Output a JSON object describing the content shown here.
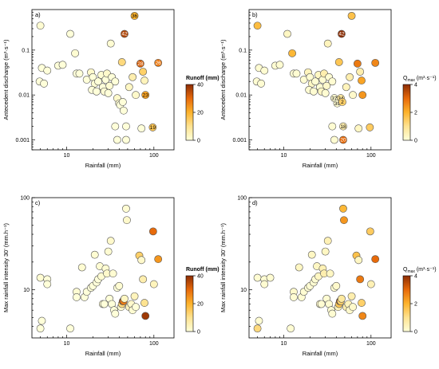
{
  "chart_data": [
    {
      "type": "scatter",
      "panel_label": "a)",
      "xlabel": "Rainfall (mm)",
      "ylabel": "Antecedent discharge (m³·s⁻¹)",
      "xscale": "log",
      "yscale": "log",
      "xlim": [
        4,
        170
      ],
      "ylim": [
        0.0006,
        0.8
      ],
      "xticks": [
        10,
        100
      ],
      "xtick_labels": [
        "10",
        "100"
      ],
      "yticks": [
        0.001,
        0.01,
        0.1
      ],
      "ytick_labels": [
        "0.001",
        "0.01",
        "0.1"
      ],
      "colorbar": {
        "title": "Runoff (mm)",
        "min": 0,
        "max": 40,
        "ticks": [
          0,
          20,
          40
        ],
        "tick_labels": [
          "0",
          "20",
          "40"
        ]
      },
      "points": [
        {
          "x": 5,
          "y": 0.35,
          "c": 1
        },
        {
          "x": 11,
          "y": 0.23,
          "c": 0
        },
        {
          "x": 12.5,
          "y": 0.085,
          "c": 1
        },
        {
          "x": 8,
          "y": 0.045,
          "c": 0
        },
        {
          "x": 9,
          "y": 0.047,
          "c": 0
        },
        {
          "x": 5.2,
          "y": 0.04,
          "c": 0
        },
        {
          "x": 6,
          "y": 0.035,
          "c": 0
        },
        {
          "x": 4.9,
          "y": 0.02,
          "c": 0
        },
        {
          "x": 5.5,
          "y": 0.018,
          "c": 0
        },
        {
          "x": 13,
          "y": 0.03,
          "c": 0
        },
        {
          "x": 14,
          "y": 0.03,
          "c": 0
        },
        {
          "x": 17,
          "y": 0.022,
          "c": 0
        },
        {
          "x": 19,
          "y": 0.032,
          "c": 2
        },
        {
          "x": 20,
          "y": 0.025,
          "c": 0
        },
        {
          "x": 21,
          "y": 0.018,
          "c": 1
        },
        {
          "x": 19.5,
          "y": 0.013,
          "c": 0
        },
        {
          "x": 22,
          "y": 0.012,
          "c": 0
        },
        {
          "x": 23,
          "y": 0.02,
          "c": 0
        },
        {
          "x": 25,
          "y": 0.028,
          "c": 1
        },
        {
          "x": 26,
          "y": 0.015,
          "c": 0
        },
        {
          "x": 27,
          "y": 0.012,
          "c": 1
        },
        {
          "x": 28,
          "y": 0.022,
          "c": 0
        },
        {
          "x": 29,
          "y": 0.03,
          "c": 2
        },
        {
          "x": 30,
          "y": 0.011,
          "c": 0
        },
        {
          "x": 31,
          "y": 0.016,
          "c": 1
        },
        {
          "x": 32,
          "y": 0.14,
          "c": 1
        },
        {
          "x": 33,
          "y": 0.025,
          "c": 0
        },
        {
          "x": 36,
          "y": 0.02,
          "c": 0
        },
        {
          "x": 38,
          "y": 0.0085,
          "c": 2
        },
        {
          "x": 40,
          "y": 0.0065,
          "c": 1
        },
        {
          "x": 41,
          "y": 0.006,
          "c": 0
        },
        {
          "x": 43,
          "y": 0.054,
          "c": 12
        },
        {
          "x": 44,
          "y": 0.007,
          "c": 0
        },
        {
          "x": 45,
          "y": 0.0045,
          "c": 0
        },
        {
          "x": 46,
          "y": 0.23,
          "c": 36,
          "label": "42"
        },
        {
          "x": 36,
          "y": 0.002,
          "c": 0
        },
        {
          "x": 38,
          "y": 0.001,
          "c": 0
        },
        {
          "x": 48,
          "y": 0.001,
          "c": 0
        },
        {
          "x": 48,
          "y": 0.002,
          "c": 0
        },
        {
          "x": 52,
          "y": 0.015,
          "c": 3
        },
        {
          "x": 57,
          "y": 0.025,
          "c": 6
        },
        {
          "x": 60,
          "y": 0.58,
          "c": 20,
          "label": "36"
        },
        {
          "x": 62,
          "y": 0.01,
          "c": 2
        },
        {
          "x": 70,
          "y": 0.05,
          "c": 32,
          "label": "28"
        },
        {
          "x": 75,
          "y": 0.033,
          "c": 14
        },
        {
          "x": 78,
          "y": 0.021,
          "c": 4
        },
        {
          "x": 80,
          "y": 0.01,
          "c": 22,
          "label": "23"
        },
        {
          "x": 72,
          "y": 0.0018,
          "c": 0
        },
        {
          "x": 97,
          "y": 0.0019,
          "c": 16,
          "label": "19"
        },
        {
          "x": 112,
          "y": 0.052,
          "c": 28,
          "label": "26"
        }
      ]
    },
    {
      "type": "scatter",
      "panel_label": "b)",
      "xlabel": "Rainfall (mm)",
      "ylabel": "Antecedent discharge (m³·s⁻¹)",
      "xscale": "log",
      "yscale": "log",
      "xlim": [
        4,
        170
      ],
      "ylim": [
        0.0006,
        0.8
      ],
      "xticks": [
        10,
        100
      ],
      "xtick_labels": [
        "10",
        "100"
      ],
      "yticks": [
        0.001,
        0.01,
        0.1
      ],
      "ytick_labels": [
        "0.001",
        "0.01",
        "0.1"
      ],
      "colorbar": {
        "title": "Qmax (m³·s⁻¹)",
        "title_main": "Q",
        "title_sub": "max",
        "title_rest": " (m³·s⁻¹)",
        "min": 0,
        "max": 4,
        "ticks": [
          0,
          2,
          4
        ],
        "tick_labels": [
          "0",
          "2",
          "4"
        ]
      },
      "points": [
        {
          "x": 5,
          "y": 0.35,
          "c": 1.8
        },
        {
          "x": 11,
          "y": 0.23,
          "c": 0.3
        },
        {
          "x": 12.5,
          "y": 0.085,
          "c": 1.9
        },
        {
          "x": 8,
          "y": 0.045,
          "c": 0.1
        },
        {
          "x": 9,
          "y": 0.047,
          "c": 0.1
        },
        {
          "x": 5.2,
          "y": 0.04,
          "c": 0.1
        },
        {
          "x": 6,
          "y": 0.035,
          "c": 0.1
        },
        {
          "x": 4.9,
          "y": 0.02,
          "c": 0.1
        },
        {
          "x": 5.5,
          "y": 0.018,
          "c": 0.1
        },
        {
          "x": 13,
          "y": 0.03,
          "c": 0.1
        },
        {
          "x": 14,
          "y": 0.03,
          "c": 0.1
        },
        {
          "x": 17,
          "y": 0.022,
          "c": 0.1
        },
        {
          "x": 19,
          "y": 0.032,
          "c": 0.4
        },
        {
          "x": 20,
          "y": 0.025,
          "c": 0.1
        },
        {
          "x": 21,
          "y": 0.018,
          "c": 0.3
        },
        {
          "x": 19.5,
          "y": 0.013,
          "c": 0.1
        },
        {
          "x": 22,
          "y": 0.012,
          "c": 0.1
        },
        {
          "x": 23,
          "y": 0.02,
          "c": 0.1
        },
        {
          "x": 25,
          "y": 0.028,
          "c": 0.3
        },
        {
          "x": 26,
          "y": 0.015,
          "c": 0.1
        },
        {
          "x": 27,
          "y": 0.012,
          "c": 0.3
        },
        {
          "x": 28,
          "y": 0.022,
          "c": 0.1
        },
        {
          "x": 29,
          "y": 0.03,
          "c": 0.6
        },
        {
          "x": 30,
          "y": 0.011,
          "c": 0.1
        },
        {
          "x": 31,
          "y": 0.016,
          "c": 0.2
        },
        {
          "x": 32,
          "y": 0.14,
          "c": 0.4
        },
        {
          "x": 33,
          "y": 0.025,
          "c": 0.1
        },
        {
          "x": 36,
          "y": 0.02,
          "c": 0.1
        },
        {
          "x": 38,
          "y": 0.0085,
          "c": 0.1,
          "label": "37"
        },
        {
          "x": 41,
          "y": 0.0065,
          "c": 0.1,
          "label": "39"
        },
        {
          "x": 43,
          "y": 0.054,
          "c": 1.6
        },
        {
          "x": 45,
          "y": 0.0085,
          "c": 0.8,
          "label": "34"
        },
        {
          "x": 46,
          "y": 0.23,
          "c": 4.2,
          "label": "42"
        },
        {
          "x": 47,
          "y": 0.007,
          "c": 1.4,
          "label": "2"
        },
        {
          "x": 36,
          "y": 0.002,
          "c": 0.1
        },
        {
          "x": 38,
          "y": 0.001,
          "c": 0.1
        },
        {
          "x": 48,
          "y": 0.001,
          "c": 3.0,
          "label": "20"
        },
        {
          "x": 48,
          "y": 0.002,
          "c": 0.6,
          "label": "18"
        },
        {
          "x": 52,
          "y": 0.015,
          "c": 0.4
        },
        {
          "x": 57,
          "y": 0.025,
          "c": 0.6
        },
        {
          "x": 60,
          "y": 0.58,
          "c": 1.7
        },
        {
          "x": 62,
          "y": 0.01,
          "c": 0.2
        },
        {
          "x": 70,
          "y": 0.05,
          "c": 2.8
        },
        {
          "x": 75,
          "y": 0.033,
          "c": 0.6
        },
        {
          "x": 78,
          "y": 0.021,
          "c": 2.2
        },
        {
          "x": 80,
          "y": 0.01,
          "c": 2.4
        },
        {
          "x": 72,
          "y": 0.0018,
          "c": 0.3
        },
        {
          "x": 97,
          "y": 0.0019,
          "c": 1.5
        },
        {
          "x": 112,
          "y": 0.052,
          "c": 2.6
        }
      ]
    },
    {
      "type": "scatter",
      "panel_label": "c)",
      "xlabel": "Rainfall (mm)",
      "ylabel": "Max rainfall intensity 30' (mm.h⁻¹)",
      "xscale": "log",
      "yscale": "log",
      "xlim": [
        4,
        170
      ],
      "ylim": [
        3,
        100
      ],
      "xticks": [
        10,
        100
      ],
      "xtick_labels": [
        "10",
        "100"
      ],
      "yticks": [
        10,
        100
      ],
      "ytick_labels": [
        "10",
        "100"
      ],
      "colorbar": {
        "title": "Runoff (mm)",
        "min": 0,
        "max": 40,
        "ticks": [
          0,
          20,
          40
        ],
        "tick_labels": [
          "0",
          "20",
          "40"
        ]
      },
      "points": [
        {
          "x": 5,
          "y": 13.5,
          "c": 1
        },
        {
          "x": 5.2,
          "y": 4.6,
          "c": 0
        },
        {
          "x": 5,
          "y": 3.8,
          "c": 0
        },
        {
          "x": 6,
          "y": 13,
          "c": 0
        },
        {
          "x": 6,
          "y": 11.5,
          "c": 0
        },
        {
          "x": 11,
          "y": 3.8,
          "c": 0
        },
        {
          "x": 13,
          "y": 9.5,
          "c": 1
        },
        {
          "x": 13,
          "y": 8.3,
          "c": 0
        },
        {
          "x": 15,
          "y": 17.5,
          "c": 1
        },
        {
          "x": 16,
          "y": 8.3,
          "c": 0
        },
        {
          "x": 17,
          "y": 9.5,
          "c": 0
        },
        {
          "x": 19,
          "y": 10.5,
          "c": 0
        },
        {
          "x": 20,
          "y": 11,
          "c": 0
        },
        {
          "x": 21,
          "y": 24,
          "c": 1
        },
        {
          "x": 22,
          "y": 12,
          "c": 0
        },
        {
          "x": 23,
          "y": 13,
          "c": 0
        },
        {
          "x": 24,
          "y": 18,
          "c": 1
        },
        {
          "x": 25,
          "y": 14,
          "c": 1
        },
        {
          "x": 26,
          "y": 7,
          "c": 1
        },
        {
          "x": 27,
          "y": 7,
          "c": 0
        },
        {
          "x": 28,
          "y": 17,
          "c": 1
        },
        {
          "x": 29,
          "y": 15,
          "c": 2
        },
        {
          "x": 30,
          "y": 26,
          "c": 1
        },
        {
          "x": 31,
          "y": 8,
          "c": 0
        },
        {
          "x": 32,
          "y": 34,
          "c": 2
        },
        {
          "x": 33,
          "y": 7,
          "c": 0
        },
        {
          "x": 34,
          "y": 15,
          "c": 1
        },
        {
          "x": 35,
          "y": 6,
          "c": 0
        },
        {
          "x": 36,
          "y": 5.5,
          "c": 0
        },
        {
          "x": 38,
          "y": 10.5,
          "c": 0
        },
        {
          "x": 40,
          "y": 11,
          "c": 1
        },
        {
          "x": 42,
          "y": 6.5,
          "c": 1
        },
        {
          "x": 43,
          "y": 7,
          "c": 12
        },
        {
          "x": 44,
          "y": 7.5,
          "c": 36
        },
        {
          "x": 45,
          "y": 7.5,
          "c": 28
        },
        {
          "x": 46,
          "y": 8,
          "c": 3
        },
        {
          "x": 48,
          "y": 76,
          "c": 1
        },
        {
          "x": 49,
          "y": 57,
          "c": 2
        },
        {
          "x": 52,
          "y": 6.5,
          "c": 4
        },
        {
          "x": 55,
          "y": 7,
          "c": 2
        },
        {
          "x": 57,
          "y": 6,
          "c": 1
        },
        {
          "x": 60,
          "y": 8.5,
          "c": 4
        },
        {
          "x": 62,
          "y": 6.5,
          "c": 0
        },
        {
          "x": 68,
          "y": 23.5,
          "c": 14
        },
        {
          "x": 72,
          "y": 21,
          "c": 2
        },
        {
          "x": 75,
          "y": 13,
          "c": 6
        },
        {
          "x": 78,
          "y": 7.2,
          "c": 10
        },
        {
          "x": 80,
          "y": 5.2,
          "c": 38
        },
        {
          "x": 98,
          "y": 43,
          "c": 30
        },
        {
          "x": 112,
          "y": 21.5,
          "c": 24
        },
        {
          "x": 100,
          "y": 11.5,
          "c": 4
        }
      ]
    },
    {
      "type": "scatter",
      "panel_label": "d)",
      "xlabel": "Rainfall (mm)",
      "ylabel": "Max rainfall intensity 30' (mm.h⁻¹)",
      "xscale": "log",
      "yscale": "log",
      "xlim": [
        4,
        170
      ],
      "ylim": [
        3,
        100
      ],
      "xticks": [
        10,
        100
      ],
      "xtick_labels": [
        "10",
        "100"
      ],
      "yticks": [
        10,
        100
      ],
      "ytick_labels": [
        "10",
        "100"
      ],
      "colorbar": {
        "title": "Qmax (m³·s⁻¹)",
        "title_main": "Q",
        "title_sub": "max",
        "title_rest": " (m³·s⁻¹)",
        "min": 0,
        "max": 4,
        "ticks": [
          0,
          2,
          4
        ],
        "tick_labels": [
          "0",
          "2",
          "4"
        ]
      },
      "points": [
        {
          "x": 5,
          "y": 13.5,
          "c": 0.1
        },
        {
          "x": 5.2,
          "y": 4.6,
          "c": 0.1
        },
        {
          "x": 5,
          "y": 3.8,
          "c": 1.2
        },
        {
          "x": 6,
          "y": 13,
          "c": 0.1
        },
        {
          "x": 6,
          "y": 11.5,
          "c": 0.1
        },
        {
          "x": 7,
          "y": 13.5,
          "c": 0.1
        },
        {
          "x": 12,
          "y": 3.8,
          "c": 0.1
        },
        {
          "x": 13,
          "y": 9.5,
          "c": 0.2
        },
        {
          "x": 13,
          "y": 8.3,
          "c": 0.1
        },
        {
          "x": 15,
          "y": 17.5,
          "c": 0.3
        },
        {
          "x": 16,
          "y": 8.3,
          "c": 0.1
        },
        {
          "x": 17,
          "y": 9.5,
          "c": 0.1
        },
        {
          "x": 19,
          "y": 10.5,
          "c": 0.1
        },
        {
          "x": 20,
          "y": 11,
          "c": 0.1
        },
        {
          "x": 21,
          "y": 24,
          "c": 0.3
        },
        {
          "x": 22,
          "y": 12,
          "c": 0.1
        },
        {
          "x": 23,
          "y": 13,
          "c": 0.1
        },
        {
          "x": 24,
          "y": 18,
          "c": 0.3
        },
        {
          "x": 25,
          "y": 14,
          "c": 0.3
        },
        {
          "x": 26,
          "y": 7,
          "c": 0.2
        },
        {
          "x": 27,
          "y": 7,
          "c": 0.1
        },
        {
          "x": 28,
          "y": 17,
          "c": 0.5
        },
        {
          "x": 29,
          "y": 15,
          "c": 0.6
        },
        {
          "x": 30,
          "y": 26,
          "c": 0.3
        },
        {
          "x": 31,
          "y": 8,
          "c": 0.1
        },
        {
          "x": 32,
          "y": 34,
          "c": 0.5
        },
        {
          "x": 33,
          "y": 7,
          "c": 0.1
        },
        {
          "x": 34,
          "y": 15,
          "c": 0.3
        },
        {
          "x": 35,
          "y": 6,
          "c": 0.1
        },
        {
          "x": 36,
          "y": 5.5,
          "c": 0.1
        },
        {
          "x": 38,
          "y": 10.5,
          "c": 0.1
        },
        {
          "x": 40,
          "y": 11,
          "c": 0.2
        },
        {
          "x": 42,
          "y": 6.5,
          "c": 0.4
        },
        {
          "x": 43,
          "y": 7,
          "c": 1.6
        },
        {
          "x": 44,
          "y": 7.5,
          "c": 4.2
        },
        {
          "x": 45,
          "y": 7.5,
          "c": 1.4
        },
        {
          "x": 46,
          "y": 8,
          "c": 0.8
        },
        {
          "x": 48,
          "y": 76,
          "c": 1.9
        },
        {
          "x": 49,
          "y": 57,
          "c": 2.4
        },
        {
          "x": 52,
          "y": 6.5,
          "c": 0.6
        },
        {
          "x": 55,
          "y": 7,
          "c": 0.4
        },
        {
          "x": 57,
          "y": 6,
          "c": 0.2
        },
        {
          "x": 60,
          "y": 8.5,
          "c": 0.6
        },
        {
          "x": 62,
          "y": 6.5,
          "c": 0.2
        },
        {
          "x": 68,
          "y": 23.5,
          "c": 1.7
        },
        {
          "x": 72,
          "y": 21,
          "c": 0.3
        },
        {
          "x": 75,
          "y": 13,
          "c": 2.8
        },
        {
          "x": 78,
          "y": 7.2,
          "c": 1.4
        },
        {
          "x": 80,
          "y": 5.2,
          "c": 2.6
        },
        {
          "x": 98,
          "y": 43,
          "c": 1.5
        },
        {
          "x": 112,
          "y": 21.5,
          "c": 3.0
        },
        {
          "x": 100,
          "y": 11.5,
          "c": 0.5
        }
      ]
    }
  ]
}
